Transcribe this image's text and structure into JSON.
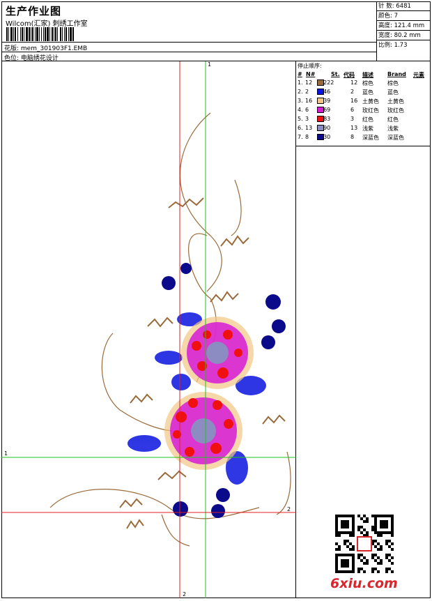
{
  "header": {
    "title": "生产作业图",
    "company": "Wilcom(汇家) 刺绣工作室",
    "file_label": "花版: mem_301903F1.EMB",
    "color_label": "色位: 电脑绣花设计"
  },
  "stats": [
    {
      "label": "针 数: 6481"
    },
    {
      "label": "颜色: 7"
    },
    {
      "label": "高度: 121.4 mm"
    },
    {
      "label": "宽度: 80.2 mm"
    },
    {
      "label": "比例: 1.73"
    }
  ],
  "stop_table": {
    "caption": "停止顺序:",
    "headers": [
      "#",
      "N#",
      "St.",
      "代码",
      "描述",
      "Brand",
      "元素"
    ],
    "rows": [
      {
        "idx": "1.",
        "n": "12",
        "code": "2222",
        "st": "12",
        "desc": "棕色",
        "brand": "棕色",
        "color": "#9a6b3a"
      },
      {
        "idx": "2.",
        "n": "2",
        "code": "346",
        "st": "2",
        "desc": "蓝色",
        "brand": "蓝色",
        "color": "#0a14e0"
      },
      {
        "idx": "3.",
        "n": "16",
        "code": "939",
        "st": "16",
        "desc": "土黄色",
        "brand": "土黄色",
        "color": "#f2c686"
      },
      {
        "idx": "4.",
        "n": "6",
        "code": "869",
        "st": "6",
        "desc": "玫红色",
        "brand": "玫红色",
        "color": "#d61ad6"
      },
      {
        "idx": "5.",
        "n": "3",
        "code": "883",
        "st": "3",
        "desc": "红色",
        "brand": "红色",
        "color": "#f01010"
      },
      {
        "idx": "6.",
        "n": "13",
        "code": "690",
        "st": "13",
        "desc": "浅紫",
        "brand": "浅紫",
        "color": "#8c8cc2"
      },
      {
        "idx": "7.",
        "n": "8",
        "code": "530",
        "st": "8",
        "desc": "深蓝色",
        "brand": "深蓝色",
        "color": "#0a0a8a"
      }
    ]
  },
  "axis_labels": {
    "v1": "1",
    "v2": "2",
    "h1": "1",
    "h2": "2"
  },
  "watermark": {
    "site": "6xiu.com"
  }
}
